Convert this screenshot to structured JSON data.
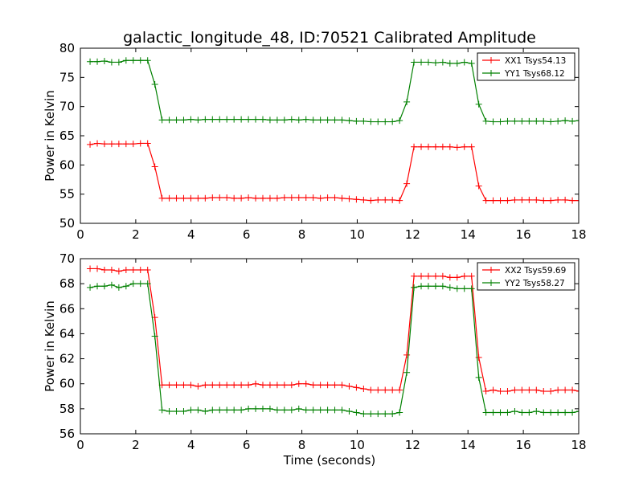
{
  "title": "galactic_longitude_48, ID:70521 Calibrated Amplitude",
  "chart_data": [
    {
      "type": "line",
      "ylabel": "Power in Kelvin",
      "xlabel": "",
      "xlim": [
        0,
        18
      ],
      "ylim": [
        50,
        80
      ],
      "xticks": [
        0,
        2,
        4,
        6,
        8,
        10,
        12,
        14,
        16,
        18
      ],
      "yticks": [
        50,
        55,
        60,
        65,
        70,
        75,
        80
      ],
      "legend_position": "top-right",
      "grid": false,
      "x": [
        0.35,
        0.61,
        0.87,
        1.13,
        1.39,
        1.65,
        1.91,
        2.17,
        2.43,
        2.69,
        2.95,
        3.21,
        3.47,
        3.73,
        3.99,
        4.25,
        4.51,
        4.77,
        5.03,
        5.29,
        5.55,
        5.81,
        6.07,
        6.33,
        6.59,
        6.85,
        7.11,
        7.37,
        7.63,
        7.89,
        8.15,
        8.41,
        8.67,
        8.93,
        9.19,
        9.45,
        9.71,
        9.97,
        10.23,
        10.49,
        10.75,
        11.01,
        11.27,
        11.53,
        11.79,
        12.05,
        12.31,
        12.57,
        12.83,
        13.09,
        13.35,
        13.61,
        13.87,
        14.13,
        14.39,
        14.65,
        14.91,
        15.17,
        15.43,
        15.69,
        15.95,
        16.21,
        16.47,
        16.73,
        16.99,
        17.25,
        17.51,
        17.77,
        18.03
      ],
      "series": [
        {
          "name": "XX1 Tsys54.13",
          "color": "#ff0000",
          "values": [
            63.5,
            63.7,
            63.6,
            63.6,
            63.6,
            63.6,
            63.6,
            63.7,
            63.7,
            59.7,
            54.3,
            54.3,
            54.3,
            54.3,
            54.3,
            54.3,
            54.3,
            54.4,
            54.4,
            54.4,
            54.3,
            54.3,
            54.4,
            54.3,
            54.3,
            54.3,
            54.3,
            54.4,
            54.4,
            54.4,
            54.4,
            54.4,
            54.3,
            54.4,
            54.4,
            54.3,
            54.2,
            54.1,
            54.0,
            53.9,
            54.0,
            54.0,
            54.0,
            53.9,
            56.8,
            63.1,
            63.1,
            63.1,
            63.1,
            63.1,
            63.1,
            63.0,
            63.1,
            63.1,
            56.4,
            53.9,
            53.9,
            53.9,
            53.9,
            54.0,
            54.0,
            54.0,
            54.0,
            53.9,
            53.9,
            54.0,
            54.0,
            53.9,
            53.9
          ]
        },
        {
          "name": "YY1 Tsys68.12",
          "color": "#008000",
          "values": [
            77.7,
            77.7,
            77.8,
            77.6,
            77.6,
            77.9,
            77.9,
            77.9,
            77.9,
            73.8,
            67.7,
            67.7,
            67.7,
            67.7,
            67.8,
            67.7,
            67.8,
            67.8,
            67.8,
            67.8,
            67.8,
            67.8,
            67.8,
            67.8,
            67.8,
            67.7,
            67.7,
            67.7,
            67.8,
            67.7,
            67.8,
            67.7,
            67.7,
            67.7,
            67.7,
            67.7,
            67.6,
            67.5,
            67.5,
            67.4,
            67.4,
            67.4,
            67.4,
            67.6,
            70.8,
            77.6,
            77.6,
            77.6,
            77.5,
            77.6,
            77.4,
            77.4,
            77.6,
            77.4,
            70.4,
            67.5,
            67.4,
            67.4,
            67.5,
            67.5,
            67.5,
            67.5,
            67.5,
            67.5,
            67.4,
            67.5,
            67.6,
            67.5,
            67.6
          ]
        }
      ]
    },
    {
      "type": "line",
      "ylabel": "Power in Kelvin",
      "xlabel": "Time (seconds)",
      "xlim": [
        0,
        18
      ],
      "ylim": [
        56,
        70
      ],
      "xticks": [
        0,
        2,
        4,
        6,
        8,
        10,
        12,
        14,
        16,
        18
      ],
      "yticks": [
        56,
        58,
        60,
        62,
        64,
        66,
        68,
        70
      ],
      "legend_position": "top-right",
      "grid": false,
      "x": [
        0.35,
        0.61,
        0.87,
        1.13,
        1.39,
        1.65,
        1.91,
        2.17,
        2.43,
        2.69,
        2.95,
        3.21,
        3.47,
        3.73,
        3.99,
        4.25,
        4.51,
        4.77,
        5.03,
        5.29,
        5.55,
        5.81,
        6.07,
        6.33,
        6.59,
        6.85,
        7.11,
        7.37,
        7.63,
        7.89,
        8.15,
        8.41,
        8.67,
        8.93,
        9.19,
        9.45,
        9.71,
        9.97,
        10.23,
        10.49,
        10.75,
        11.01,
        11.27,
        11.53,
        11.79,
        12.05,
        12.31,
        12.57,
        12.83,
        13.09,
        13.35,
        13.61,
        13.87,
        14.13,
        14.39,
        14.65,
        14.91,
        15.17,
        15.43,
        15.69,
        15.95,
        16.21,
        16.47,
        16.73,
        16.99,
        17.25,
        17.51,
        17.77,
        18.03
      ],
      "series": [
        {
          "name": "XX2 Tsys59.69",
          "color": "#ff0000",
          "values": [
            69.2,
            69.2,
            69.1,
            69.1,
            69.0,
            69.1,
            69.1,
            69.1,
            69.1,
            65.3,
            59.9,
            59.9,
            59.9,
            59.9,
            59.9,
            59.8,
            59.9,
            59.9,
            59.9,
            59.9,
            59.9,
            59.9,
            59.9,
            60.0,
            59.9,
            59.9,
            59.9,
            59.9,
            59.9,
            60.0,
            60.0,
            59.9,
            59.9,
            59.9,
            59.9,
            59.9,
            59.8,
            59.7,
            59.6,
            59.5,
            59.5,
            59.5,
            59.5,
            59.5,
            62.3,
            68.6,
            68.6,
            68.6,
            68.6,
            68.6,
            68.5,
            68.5,
            68.6,
            68.6,
            62.1,
            59.4,
            59.5,
            59.4,
            59.4,
            59.5,
            59.5,
            59.5,
            59.5,
            59.4,
            59.4,
            59.5,
            59.5,
            59.5,
            59.4
          ]
        },
        {
          "name": "YY2 Tsys58.27",
          "color": "#008000",
          "values": [
            67.7,
            67.8,
            67.8,
            67.9,
            67.7,
            67.8,
            68.0,
            68.0,
            68.0,
            63.8,
            57.9,
            57.8,
            57.8,
            57.8,
            57.9,
            57.9,
            57.8,
            57.9,
            57.9,
            57.9,
            57.9,
            57.9,
            58.0,
            58.0,
            58.0,
            58.0,
            57.9,
            57.9,
            57.9,
            58.0,
            57.9,
            57.9,
            57.9,
            57.9,
            57.9,
            57.9,
            57.8,
            57.7,
            57.6,
            57.6,
            57.6,
            57.6,
            57.6,
            57.7,
            60.9,
            67.7,
            67.8,
            67.8,
            67.8,
            67.8,
            67.7,
            67.6,
            67.6,
            67.6,
            60.5,
            57.7,
            57.7,
            57.7,
            57.7,
            57.8,
            57.7,
            57.7,
            57.8,
            57.7,
            57.7,
            57.7,
            57.7,
            57.7,
            57.8
          ]
        }
      ]
    }
  ]
}
